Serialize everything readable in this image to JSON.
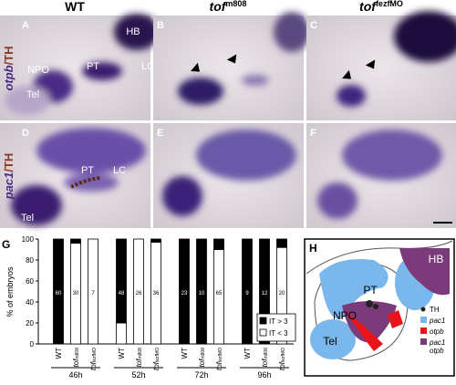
{
  "header": {
    "columns": [
      {
        "text": "WT"
      },
      {
        "text": "tof",
        "sup": "m808"
      },
      {
        "text": "tof",
        "sup": "fezfMO"
      }
    ]
  },
  "row_labels": [
    {
      "gene": "otpb",
      "marker": "/TH"
    },
    {
      "gene": "pac1",
      "marker": "/TH"
    }
  ],
  "panels": [
    {
      "letter": "A",
      "labels": [
        "HB",
        "PT",
        "NPO",
        "LC",
        "Tel"
      ]
    },
    {
      "letter": "B"
    },
    {
      "letter": "C"
    },
    {
      "letter": "D",
      "labels": [
        "PT",
        "LC",
        "Tel"
      ]
    },
    {
      "letter": "E"
    },
    {
      "letter": "F"
    }
  ],
  "panel_g": {
    "type": "bar",
    "letter": "G",
    "y_label": "% of embryos",
    "ylim": [
      0,
      100
    ],
    "yticks": [
      0,
      20,
      40,
      60,
      80,
      100
    ],
    "groups": [
      "46h",
      "52h",
      "72h",
      "96h"
    ],
    "categories": [
      {
        "text": "WT"
      },
      {
        "text": "tof",
        "sup": "m808"
      },
      {
        "text": "tof",
        "sup": "fezfMO"
      },
      {
        "text": "WT"
      },
      {
        "text": "tof",
        "sup": "m808"
      },
      {
        "text": "tof",
        "sup": "fezfMO"
      },
      {
        "text": "WT"
      },
      {
        "text": "tof",
        "sup": "m808"
      },
      {
        "text": "tof",
        "sup": "fezfMO"
      },
      {
        "text": "WT"
      },
      {
        "text": "tof",
        "sup": "m808"
      },
      {
        "text": "tof",
        "sup": "fezfMO"
      }
    ],
    "series": [
      {
        "name": "IT > 3",
        "color": "#000000",
        "values": [
          100,
          4,
          0,
          80,
          0,
          3,
          100,
          100,
          10,
          100,
          100,
          8
        ]
      },
      {
        "name": "IT < 3",
        "color": "#ffffff",
        "values": [
          0,
          96,
          100,
          20,
          100,
          97,
          0,
          0,
          90,
          0,
          0,
          92
        ]
      }
    ],
    "counts": [
      60,
      30,
      7,
      48,
      26,
      36,
      23,
      10,
      65,
      9,
      12,
      20
    ]
  },
  "panel_h": {
    "letter": "H",
    "labels": [
      "HB",
      "PT",
      "NPO",
      "Tel"
    ],
    "legend": [
      {
        "text": "TH"
      },
      {
        "text": "pac1"
      },
      {
        "text": "otpb"
      },
      {
        "text": "pac1",
        "line2": "otpb"
      }
    ]
  }
}
